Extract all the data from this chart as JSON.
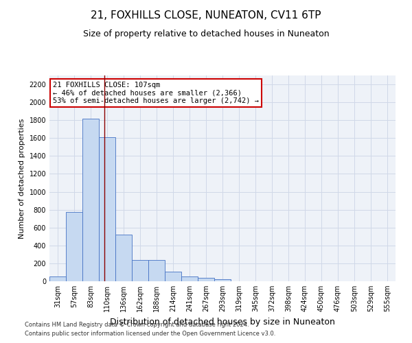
{
  "title": "21, FOXHILLS CLOSE, NUNEATON, CV11 6TP",
  "subtitle": "Size of property relative to detached houses in Nuneaton",
  "xlabel": "Distribution of detached houses by size in Nuneaton",
  "ylabel": "Number of detached properties",
  "categories": [
    "31sqm",
    "57sqm",
    "83sqm",
    "110sqm",
    "136sqm",
    "162sqm",
    "188sqm",
    "214sqm",
    "241sqm",
    "267sqm",
    "293sqm",
    "319sqm",
    "345sqm",
    "372sqm",
    "398sqm",
    "424sqm",
    "450sqm",
    "476sqm",
    "503sqm",
    "529sqm",
    "555sqm"
  ],
  "values": [
    50,
    775,
    1820,
    1610,
    520,
    240,
    235,
    105,
    55,
    40,
    20,
    0,
    0,
    0,
    0,
    0,
    0,
    0,
    0,
    0,
    0
  ],
  "bar_color": "#c6d9f1",
  "bar_edge_color": "#4472c4",
  "vline_x": 2.85,
  "vline_color": "#8b0000",
  "annotation_line1": "21 FOXHILLS CLOSE: 107sqm",
  "annotation_line2": "← 46% of detached houses are smaller (2,366)",
  "annotation_line3": "53% of semi-detached houses are larger (2,742) →",
  "annotation_box_color": "#ffffff",
  "annotation_box_edge_color": "#cc0000",
  "ylim": [
    0,
    2300
  ],
  "yticks": [
    0,
    200,
    400,
    600,
    800,
    1000,
    1200,
    1400,
    1600,
    1800,
    2000,
    2200
  ],
  "grid_color": "#d0d8e8",
  "footer_line1": "Contains HM Land Registry data © Crown copyright and database right 2024.",
  "footer_line2": "Contains public sector information licensed under the Open Government Licence v3.0.",
  "title_fontsize": 11,
  "subtitle_fontsize": 9,
  "ylabel_fontsize": 8,
  "xlabel_fontsize": 9,
  "tick_fontsize": 7,
  "footer_fontsize": 6,
  "annotation_fontsize": 7.5,
  "bg_color": "#eef2f8"
}
